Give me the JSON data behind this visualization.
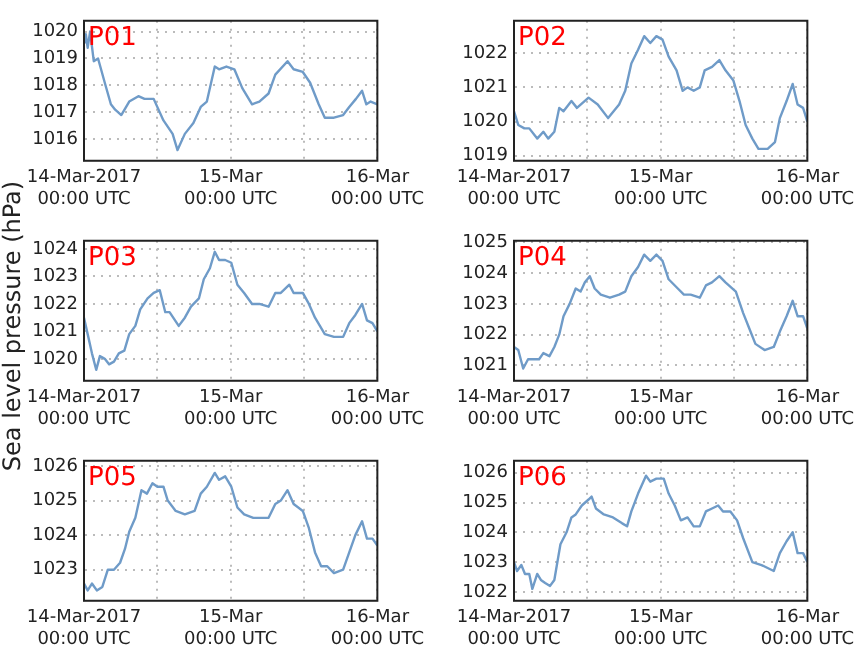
{
  "chart_data": [
    {
      "type": "line",
      "title": "P01",
      "grid": true,
      "ylim": [
        1015.2,
        1020.4
      ],
      "yticks": [
        1016,
        1017,
        1018,
        1019,
        1020
      ],
      "xlim": [
        "2017-03-14T00:00",
        "2017-03-16T00:00"
      ],
      "xticks": [
        {
          "value": "2017-03-14T00:00",
          "label": "14-Mar-2017\n00:00 UTC"
        },
        {
          "value": "2017-03-14T12:00",
          "label": null
        },
        {
          "value": "2017-03-15T00:00",
          "label": "15-Mar\n00:00 UTC"
        },
        {
          "value": "2017-03-15T12:00",
          "label": null
        },
        {
          "value": "2017-03-16T00:00",
          "label": "16-Mar\n00:00 UTC"
        }
      ],
      "x": [
        "2017-03-14T00:00",
        "2017-03-14T00:18",
        "2017-03-14T00:36",
        "2017-03-14T01:00",
        "2017-03-14T01:36",
        "2017-03-14T02:18",
        "2017-03-14T03:24",
        "2017-03-14T04:24",
        "2017-03-14T05:06",
        "2017-03-14T06:06",
        "2017-03-14T07:24",
        "2017-03-14T08:54",
        "2017-03-14T09:54",
        "2017-03-14T11:24",
        "2017-03-14T13:00",
        "2017-03-14T14:30",
        "2017-03-14T15:18",
        "2017-03-14T16:30",
        "2017-03-14T17:54",
        "2017-03-14T19:06",
        "2017-03-14T20:06",
        "2017-03-14T21:24",
        "2017-03-14T22:06",
        "2017-03-14T23:18",
        "2017-03-15T00:36",
        "2017-03-15T01:54",
        "2017-03-15T03:30",
        "2017-03-15T04:42",
        "2017-03-15T06:12",
        "2017-03-15T07:18",
        "2017-03-15T09:18",
        "2017-03-15T10:18",
        "2017-03-15T11:48",
        "2017-03-15T13:00",
        "2017-03-15T14:24",
        "2017-03-15T15:24",
        "2017-03-15T16:54",
        "2017-03-15T18:24",
        "2017-03-15T19:24",
        "2017-03-15T20:30",
        "2017-03-15T21:30",
        "2017-03-15T22:12",
        "2017-03-15T22:54",
        "2017-03-16T00:00"
      ],
      "series": [
        {
          "color": "#6f9bc8",
          "values": [
            1019.6,
            1019.9,
            1019.4,
            1020.0,
            1018.9,
            1019.0,
            1018.1,
            1017.3,
            1017.1,
            1016.9,
            1017.4,
            1017.6,
            1017.5,
            1017.5,
            1016.7,
            1016.2,
            1015.6,
            1016.2,
            1016.6,
            1017.2,
            1017.4,
            1018.7,
            1018.6,
            1018.7,
            1018.6,
            1017.9,
            1017.3,
            1017.4,
            1017.7,
            1018.4,
            1018.9,
            1018.6,
            1018.5,
            1018.1,
            1017.3,
            1016.8,
            1016.8,
            1016.9,
            1017.2,
            1017.5,
            1017.8,
            1017.3,
            1017.4,
            1017.3
          ]
        }
      ]
    },
    {
      "type": "line",
      "title": "P02",
      "grid": true,
      "ylim": [
        1018.85,
        1022.95
      ],
      "yticks": [
        1019,
        1020,
        1021,
        1022
      ],
      "xlim": [
        "2017-03-14T00:00",
        "2017-03-16T00:00"
      ],
      "xticks": [
        {
          "value": "2017-03-14T00:00",
          "label": "14-Mar-2017\n00:00 UTC"
        },
        {
          "value": "2017-03-14T12:00",
          "label": null
        },
        {
          "value": "2017-03-15T00:00",
          "label": "15-Mar\n00:00 UTC"
        },
        {
          "value": "2017-03-15T12:00",
          "label": null
        },
        {
          "value": "2017-03-16T00:00",
          "label": "16-Mar\n00:00 UTC"
        }
      ],
      "x": [
        "2017-03-14T00:00",
        "2017-03-14T00:42",
        "2017-03-14T01:42",
        "2017-03-14T02:30",
        "2017-03-14T03:48",
        "2017-03-14T04:48",
        "2017-03-14T05:36",
        "2017-03-14T06:36",
        "2017-03-14T07:24",
        "2017-03-14T08:06",
        "2017-03-14T09:24",
        "2017-03-14T10:18",
        "2017-03-14T12:12",
        "2017-03-14T13:42",
        "2017-03-14T15:24",
        "2017-03-14T17:12",
        "2017-03-14T18:12",
        "2017-03-14T19:12",
        "2017-03-14T20:18",
        "2017-03-14T21:18",
        "2017-03-14T22:18",
        "2017-03-14T23:18",
        "2017-03-15T00:18",
        "2017-03-15T01:18",
        "2017-03-15T02:36",
        "2017-03-15T03:36",
        "2017-03-15T04:24",
        "2017-03-15T05:24",
        "2017-03-15T06:24",
        "2017-03-15T07:12",
        "2017-03-15T08:24",
        "2017-03-15T09:36",
        "2017-03-15T10:36",
        "2017-03-15T11:54",
        "2017-03-15T12:54",
        "2017-03-15T13:54",
        "2017-03-15T15:00",
        "2017-03-15T16:00",
        "2017-03-15T17:30",
        "2017-03-15T18:42",
        "2017-03-15T19:30",
        "2017-03-15T20:36",
        "2017-03-15T21:36",
        "2017-03-15T22:24",
        "2017-03-15T23:18",
        "2017-03-16T00:00"
      ],
      "series": [
        {
          "color": "#6f9bc8",
          "values": [
            1020.3,
            1019.9,
            1019.8,
            1019.8,
            1019.5,
            1019.7,
            1019.5,
            1019.7,
            1020.4,
            1020.3,
            1020.6,
            1020.4,
            1020.7,
            1020.5,
            1020.1,
            1020.5,
            1020.9,
            1021.7,
            1022.1,
            1022.5,
            1022.3,
            1022.5,
            1022.4,
            1021.9,
            1021.5,
            1020.9,
            1021.0,
            1020.9,
            1021.0,
            1021.5,
            1021.6,
            1021.8,
            1021.5,
            1021.2,
            1020.6,
            1019.9,
            1019.5,
            1019.2,
            1019.2,
            1019.4,
            1020.1,
            1020.6,
            1021.1,
            1020.5,
            1020.4,
            1020.0
          ]
        }
      ]
    },
    {
      "type": "line",
      "title": "P03",
      "ylabel": "Sea level pressure (hPa)",
      "grid": true,
      "ylim": [
        1019.2,
        1024.3
      ],
      "yticks": [
        1020,
        1021,
        1022,
        1023,
        1024
      ],
      "xlim": [
        "2017-03-14T00:00",
        "2017-03-16T00:00"
      ],
      "xticks": [
        {
          "value": "2017-03-14T00:00",
          "label": "14-Mar-2017\n00:00 UTC"
        },
        {
          "value": "2017-03-14T12:00",
          "label": null
        },
        {
          "value": "2017-03-15T00:00",
          "label": "15-Mar\n00:00 UTC"
        },
        {
          "value": "2017-03-15T12:00",
          "label": null
        },
        {
          "value": "2017-03-16T00:00",
          "label": "16-Mar\n00:00 UTC"
        }
      ],
      "x": [
        "2017-03-14T00:00",
        "2017-03-14T00:36",
        "2017-03-14T01:18",
        "2017-03-14T02:00",
        "2017-03-14T02:36",
        "2017-03-14T03:24",
        "2017-03-14T04:06",
        "2017-03-14T04:54",
        "2017-03-14T05:42",
        "2017-03-14T06:36",
        "2017-03-14T07:24",
        "2017-03-14T08:24",
        "2017-03-14T09:12",
        "2017-03-14T10:24",
        "2017-03-14T11:24",
        "2017-03-14T12:24",
        "2017-03-14T13:18",
        "2017-03-14T14:00",
        "2017-03-14T15:30",
        "2017-03-14T16:30",
        "2017-03-14T17:30",
        "2017-03-14T18:48",
        "2017-03-14T19:36",
        "2017-03-14T20:36",
        "2017-03-14T21:24",
        "2017-03-14T22:06",
        "2017-03-14T23:06",
        "2017-03-15T00:06",
        "2017-03-15T01:06",
        "2017-03-15T02:12",
        "2017-03-15T03:30",
        "2017-03-15T04:42",
        "2017-03-15T06:12",
        "2017-03-15T07:18",
        "2017-03-15T08:12",
        "2017-03-15T09:36",
        "2017-03-15T10:18",
        "2017-03-15T11:48",
        "2017-03-15T12:48",
        "2017-03-15T13:48",
        "2017-03-15T15:24",
        "2017-03-15T16:54",
        "2017-03-15T18:24",
        "2017-03-15T19:24",
        "2017-03-15T20:24",
        "2017-03-15T21:30",
        "2017-03-15T22:18",
        "2017-03-15T23:12",
        "2017-03-16T00:00"
      ],
      "series": [
        {
          "color": "#6f9bc8",
          "values": [
            1021.5,
            1020.9,
            1020.2,
            1019.6,
            1020.1,
            1020.0,
            1019.8,
            1019.9,
            1020.2,
            1020.3,
            1020.9,
            1021.2,
            1021.8,
            1022.2,
            1022.4,
            1022.5,
            1021.7,
            1021.7,
            1021.2,
            1021.5,
            1021.9,
            1022.2,
            1022.9,
            1023.3,
            1023.9,
            1023.6,
            1023.6,
            1023.5,
            1022.7,
            1022.4,
            1022.0,
            1022.0,
            1021.9,
            1022.4,
            1022.4,
            1022.7,
            1022.4,
            1022.4,
            1022.0,
            1021.5,
            1020.9,
            1020.8,
            1020.8,
            1021.3,
            1021.6,
            1022.0,
            1021.4,
            1021.3,
            1021.0
          ]
        }
      ]
    },
    {
      "type": "line",
      "title": "P04",
      "grid": true,
      "ylim": [
        1020.5,
        1025.05
      ],
      "yticks": [
        1021,
        1022,
        1023,
        1024,
        1025
      ],
      "xlim": [
        "2017-03-14T00:00",
        "2017-03-16T00:00"
      ],
      "xticks": [
        {
          "value": "2017-03-14T00:00",
          "label": "14-Mar-2017\n00:00 UTC"
        },
        {
          "value": "2017-03-14T12:00",
          "label": null
        },
        {
          "value": "2017-03-15T00:00",
          "label": "15-Mar\n00:00 UTC"
        },
        {
          "value": "2017-03-15T12:00",
          "label": null
        },
        {
          "value": "2017-03-16T00:00",
          "label": "16-Mar\n00:00 UTC"
        }
      ],
      "x": [
        "2017-03-14T00:00",
        "2017-03-14T00:42",
        "2017-03-14T01:30",
        "2017-03-14T02:18",
        "2017-03-14T03:18",
        "2017-03-14T04:06",
        "2017-03-14T04:48",
        "2017-03-14T05:48",
        "2017-03-14T06:36",
        "2017-03-14T07:24",
        "2017-03-14T08:06",
        "2017-03-14T09:06",
        "2017-03-14T10:06",
        "2017-03-14T10:54",
        "2017-03-14T11:36",
        "2017-03-14T12:24",
        "2017-03-14T13:12",
        "2017-03-14T14:12",
        "2017-03-14T15:42",
        "2017-03-14T17:12",
        "2017-03-14T18:12",
        "2017-03-14T19:12",
        "2017-03-14T20:18",
        "2017-03-14T21:18",
        "2017-03-14T22:18",
        "2017-03-14T23:18",
        "2017-03-15T00:18",
        "2017-03-15T01:18",
        "2017-03-15T02:48",
        "2017-03-15T03:48",
        "2017-03-15T04:54",
        "2017-03-15T06:24",
        "2017-03-15T07:24",
        "2017-03-15T08:24",
        "2017-03-15T09:36",
        "2017-03-15T10:36",
        "2017-03-15T12:18",
        "2017-03-15T13:30",
        "2017-03-15T14:30",
        "2017-03-15T15:30",
        "2017-03-15T17:00",
        "2017-03-15T18:30",
        "2017-03-15T19:30",
        "2017-03-15T20:36",
        "2017-03-15T21:36",
        "2017-03-15T22:24",
        "2017-03-15T23:18",
        "2017-03-16T00:00"
      ],
      "series": [
        {
          "color": "#6f9bc8",
          "values": [
            1021.6,
            1021.5,
            1020.9,
            1021.2,
            1021.2,
            1021.2,
            1021.4,
            1021.3,
            1021.6,
            1022.0,
            1022.6,
            1023.0,
            1023.5,
            1023.4,
            1023.7,
            1023.9,
            1023.5,
            1023.3,
            1023.2,
            1023.3,
            1023.4,
            1023.9,
            1024.2,
            1024.6,
            1024.4,
            1024.6,
            1024.4,
            1023.8,
            1023.5,
            1023.3,
            1023.3,
            1023.2,
            1023.6,
            1023.7,
            1023.9,
            1023.7,
            1023.4,
            1022.7,
            1022.2,
            1021.7,
            1021.5,
            1021.6,
            1022.1,
            1022.6,
            1023.1,
            1022.6,
            1022.6,
            1022.2
          ]
        }
      ]
    },
    {
      "type": "line",
      "title": "P05",
      "grid": true,
      "ylim": [
        1022.1,
        1026.15
      ],
      "yticks": [
        1023,
        1024,
        1025,
        1026
      ],
      "xlim": [
        "2017-03-14T00:00",
        "2017-03-16T00:00"
      ],
      "xticks": [
        {
          "value": "2017-03-14T00:00",
          "label": "14-Mar-2017\n00:00 UTC"
        },
        {
          "value": "2017-03-14T12:00",
          "label": null
        },
        {
          "value": "2017-03-15T00:00",
          "label": "15-Mar\n00:00 UTC"
        },
        {
          "value": "2017-03-15T12:00",
          "label": null
        },
        {
          "value": "2017-03-16T00:00",
          "label": "16-Mar\n00:00 UTC"
        }
      ],
      "x": [
        "2017-03-14T00:00",
        "2017-03-14T00:36",
        "2017-03-14T01:18",
        "2017-03-14T02:06",
        "2017-03-14T03:00",
        "2017-03-14T03:54",
        "2017-03-14T04:54",
        "2017-03-14T05:54",
        "2017-03-14T06:42",
        "2017-03-14T07:24",
        "2017-03-14T08:24",
        "2017-03-14T09:24",
        "2017-03-14T10:18",
        "2017-03-14T11:12",
        "2017-03-14T12:00",
        "2017-03-14T13:00",
        "2017-03-14T13:42",
        "2017-03-14T15:00",
        "2017-03-14T16:30",
        "2017-03-14T18:06",
        "2017-03-14T19:06",
        "2017-03-14T20:06",
        "2017-03-14T21:24",
        "2017-03-14T22:06",
        "2017-03-14T23:06",
        "2017-03-15T00:06",
        "2017-03-15T01:06",
        "2017-03-15T02:12",
        "2017-03-15T03:42",
        "2017-03-15T04:42",
        "2017-03-15T06:12",
        "2017-03-15T07:18",
        "2017-03-15T08:12",
        "2017-03-15T09:18",
        "2017-03-15T10:18",
        "2017-03-15T11:48",
        "2017-03-15T12:48",
        "2017-03-15T13:48",
        "2017-03-15T14:48",
        "2017-03-15T15:48",
        "2017-03-15T16:54",
        "2017-03-15T18:24",
        "2017-03-15T19:24",
        "2017-03-15T20:24",
        "2017-03-15T21:30",
        "2017-03-15T22:18",
        "2017-03-15T23:12",
        "2017-03-16T00:00"
      ],
      "series": [
        {
          "color": "#6f9bc8",
          "values": [
            1022.6,
            1022.4,
            1022.6,
            1022.4,
            1022.5,
            1023.0,
            1023.0,
            1023.2,
            1023.6,
            1024.1,
            1024.5,
            1025.3,
            1025.2,
            1025.5,
            1025.4,
            1025.4,
            1025.0,
            1024.7,
            1024.6,
            1024.7,
            1025.2,
            1025.4,
            1025.8,
            1025.6,
            1025.7,
            1025.4,
            1024.8,
            1024.6,
            1024.5,
            1024.5,
            1024.5,
            1024.9,
            1025.0,
            1025.3,
            1024.9,
            1024.7,
            1024.2,
            1023.5,
            1023.1,
            1023.1,
            1022.9,
            1023.0,
            1023.5,
            1024.0,
            1024.4,
            1023.9,
            1023.9,
            1023.7
          ]
        }
      ]
    },
    {
      "type": "line",
      "title": "P06",
      "grid": true,
      "ylim": [
        1021.7,
        1026.4
      ],
      "yticks": [
        1022,
        1023,
        1024,
        1025,
        1026
      ],
      "xlim": [
        "2017-03-14T00:00",
        "2017-03-16T00:00"
      ],
      "xticks": [
        {
          "value": "2017-03-14T00:00",
          "label": "14-Mar-2017\n00:00 UTC"
        },
        {
          "value": "2017-03-14T12:00",
          "label": null
        },
        {
          "value": "2017-03-15T00:00",
          "label": "15-Mar\n00:00 UTC"
        },
        {
          "value": "2017-03-15T12:00",
          "label": null
        },
        {
          "value": "2017-03-16T00:00",
          "label": "16-Mar\n00:00 UTC"
        }
      ],
      "x": [
        "2017-03-14T00:00",
        "2017-03-14T00:30",
        "2017-03-14T01:12",
        "2017-03-14T01:48",
        "2017-03-14T02:30",
        "2017-03-14T03:00",
        "2017-03-14T03:48",
        "2017-03-14T04:24",
        "2017-03-14T05:06",
        "2017-03-14T05:54",
        "2017-03-14T06:36",
        "2017-03-14T07:06",
        "2017-03-14T07:36",
        "2017-03-14T08:36",
        "2017-03-14T09:24",
        "2017-03-14T10:06",
        "2017-03-14T11:06",
        "2017-03-14T12:12",
        "2017-03-14T12:42",
        "2017-03-14T13:24",
        "2017-03-14T14:42",
        "2017-03-14T16:12",
        "2017-03-14T17:42",
        "2017-03-14T18:30",
        "2017-03-14T19:12",
        "2017-03-14T20:18",
        "2017-03-14T21:36",
        "2017-03-14T22:18",
        "2017-03-14T23:18",
        "2017-03-15T00:30",
        "2017-03-15T01:18",
        "2017-03-15T02:18",
        "2017-03-15T03:18",
        "2017-03-15T04:24",
        "2017-03-15T05:24",
        "2017-03-15T06:24",
        "2017-03-15T07:24",
        "2017-03-15T08:24",
        "2017-03-15T09:24",
        "2017-03-15T10:12",
        "2017-03-15T11:24",
        "2017-03-15T12:30",
        "2017-03-15T13:30",
        "2017-03-15T15:00",
        "2017-03-15T16:30",
        "2017-03-15T17:30",
        "2017-03-15T18:30",
        "2017-03-15T19:30",
        "2017-03-15T20:36",
        "2017-03-15T21:36",
        "2017-03-15T22:24",
        "2017-03-15T23:18",
        "2017-03-16T00:00"
      ],
      "series": [
        {
          "color": "#6f9bc8",
          "values": [
            1023.0,
            1022.7,
            1022.9,
            1022.6,
            1022.6,
            1022.1,
            1022.6,
            1022.4,
            1022.3,
            1022.2,
            1022.4,
            1023.0,
            1023.6,
            1024.0,
            1024.5,
            1024.6,
            1024.9,
            1025.1,
            1025.2,
            1024.8,
            1024.6,
            1024.5,
            1024.3,
            1024.2,
            1024.7,
            1025.3,
            1025.9,
            1025.7,
            1025.8,
            1025.8,
            1025.3,
            1024.9,
            1024.4,
            1024.5,
            1024.2,
            1024.2,
            1024.7,
            1024.8,
            1024.9,
            1024.7,
            1024.7,
            1024.4,
            1023.8,
            1023.0,
            1022.9,
            1022.8,
            1022.7,
            1023.3,
            1023.7,
            1024.0,
            1023.3,
            1023.3,
            1023.0
          ]
        }
      ]
    }
  ]
}
